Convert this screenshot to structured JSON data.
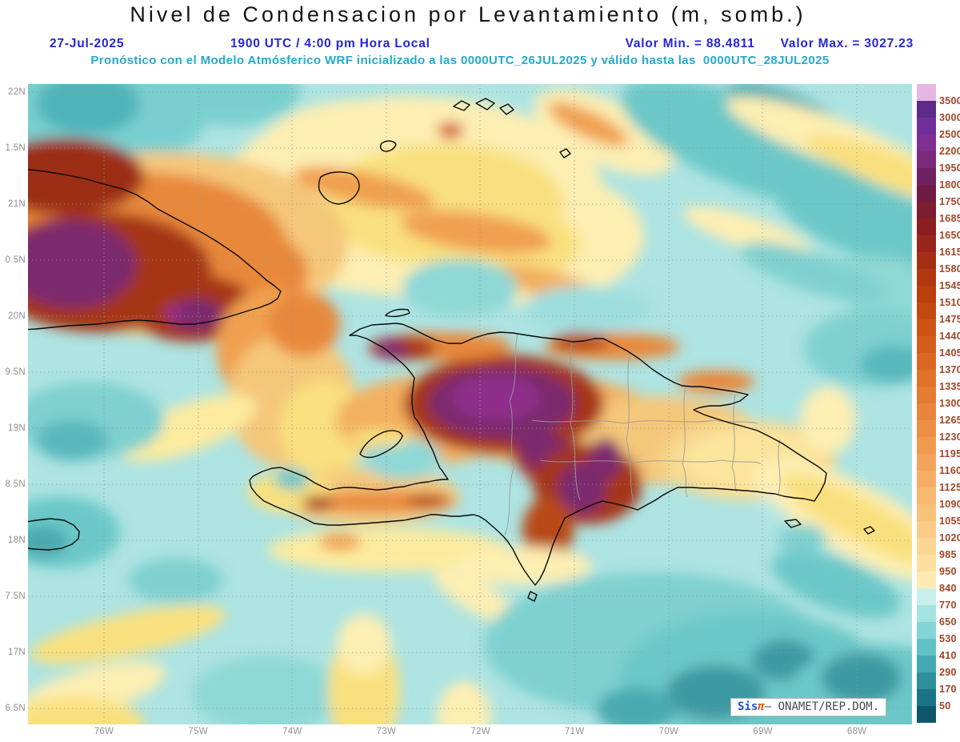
{
  "title": "Nivel de Condensacion por Levantamiento (m, somb.)",
  "header": {
    "date": "27-Jul-2025",
    "time": "1900 UTC / 4:00 pm Hora Local",
    "value_min": "Valor Min. = 88.4811",
    "value_max": "Valor Max. = 3027.23",
    "model_line": "Pronóstico con el Modelo Atmósferico WRF inicializado a las 0000UTC_26JUL2025 y válido hasta las  0000UTC_28JUL2025"
  },
  "axes": {
    "lat_labels": [
      "22N",
      "1.5N",
      "21N",
      "0.5N",
      "20N",
      "9.5N",
      "19N",
      "8.5N",
      "18N",
      "7.5N",
      "17N",
      "6.5N"
    ],
    "lon_labels": [
      "76W",
      "75W",
      "74W",
      "73W",
      "72W",
      "71W",
      "70W",
      "69W",
      "68W"
    ]
  },
  "colorbar": {
    "labels": [
      "3500",
      "3000",
      "2500",
      "2200",
      "1950",
      "1800",
      "1750",
      "1685",
      "1650",
      "1615",
      "1580",
      "1545",
      "1510",
      "1475",
      "1440",
      "1405",
      "1370",
      "1335",
      "1300",
      "1265",
      "1230",
      "1195",
      "1160",
      "1125",
      "1090",
      "1055",
      "1020",
      "985",
      "950",
      "840",
      "770",
      "650",
      "530",
      "410",
      "290",
      "170",
      "50"
    ],
    "colors": [
      "#e7b7e3",
      "#5e2b8a",
      "#70309b",
      "#7d2f92",
      "#7c2a7a",
      "#6f2160",
      "#6f1b44",
      "#7c1c30",
      "#8b1e20",
      "#98261a",
      "#a52e14",
      "#b03710",
      "#ba400e",
      "#c34a10",
      "#cc5415",
      "#d35e1b",
      "#da6822",
      "#e0722a",
      "#e57c33",
      "#e9863c",
      "#ed9046",
      "#f09a50",
      "#f3a45a",
      "#f5ae65",
      "#f7b870",
      "#f9c27b",
      "#fbcc87",
      "#fcd693",
      "#fde09f",
      "#feeab2",
      "#c9efec",
      "#a5e3e2",
      "#83d4d4",
      "#61c2c5",
      "#44aab1",
      "#2d909b",
      "#1b7485",
      "#0d5769"
    ]
  },
  "watermark": {
    "sis": "Sis",
    "pi": "π",
    "org": "– ONAMET/REP.DOM."
  },
  "palette": {
    "header_blue": "#2626d8",
    "model_line_cyan": "#24a9cf",
    "colorbar_label_color": "#a14426",
    "ocean_base_cyan": "#aee4e3",
    "axis_label_gray": "#8f8f8f"
  }
}
